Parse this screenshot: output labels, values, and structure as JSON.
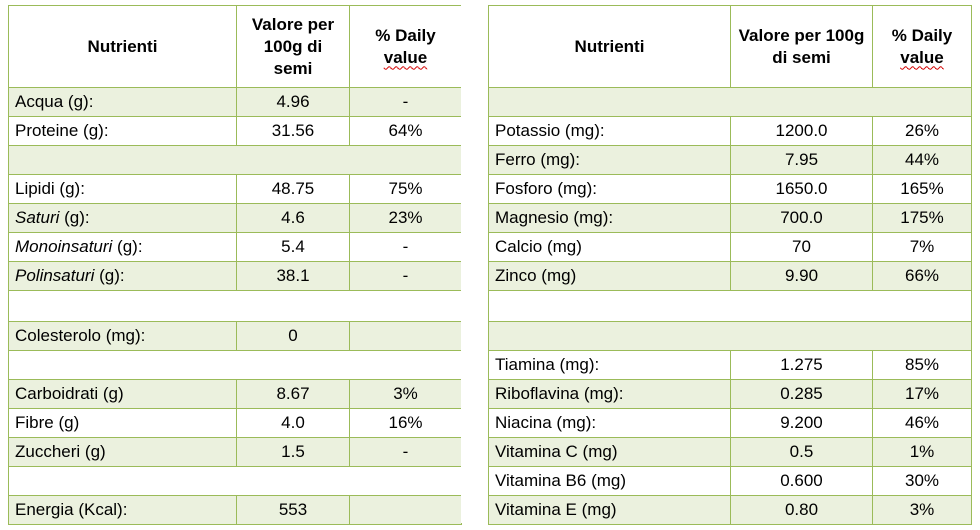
{
  "left_table": {
    "header": {
      "nutrient": "Nutrienti",
      "value": "Valore per 100g di semi",
      "daily_a": "% Daily",
      "daily_b": "value"
    },
    "rows": [
      {
        "name": "Acqua (g):",
        "value": "4.96",
        "daily": "-"
      },
      {
        "name": "Proteine (g):",
        "value": "31.56",
        "daily": "64%"
      },
      {
        "name": "",
        "value": "",
        "daily": ""
      },
      {
        "name": "Lipidi (g):",
        "value": "48.75",
        "daily": "75%"
      },
      {
        "name_italic": "Saturi",
        "name_rest": " (g):",
        "value": "4.6",
        "daily": "23%"
      },
      {
        "name_italic": "Monoinsaturi",
        "name_rest": " (g):",
        "value": "5.4",
        "daily": "-"
      },
      {
        "name_italic": "Polinsaturi",
        "name_rest": " (g):",
        "value": "38.1",
        "daily": "-"
      },
      {
        "name": "",
        "value": "",
        "daily": ""
      },
      {
        "name": "Colesterolo (mg):",
        "value": "0",
        "daily": ""
      },
      {
        "name": "",
        "value": "",
        "daily": ""
      },
      {
        "name": "Carboidrati (g)",
        "value": "8.67",
        "daily": "3%"
      },
      {
        "name": "Fibre (g)",
        "value": "4.0",
        "daily": "16%"
      },
      {
        "name": "Zuccheri (g)",
        "value": "1.5",
        "daily": "-"
      },
      {
        "name": "",
        "value": "",
        "daily": ""
      },
      {
        "name": "Energia (Kcal):",
        "value": "553",
        "daily": ""
      }
    ]
  },
  "right_table": {
    "header": {
      "nutrient": "Nutrienti",
      "value": "Valore per 100g di semi",
      "daily_a": "% Daily",
      "daily_b": "value"
    },
    "rows": [
      {
        "name": "",
        "value": "",
        "daily": ""
      },
      {
        "name": "Potassio (mg):",
        "value": "1200.0",
        "daily": "26%"
      },
      {
        "name": "Ferro (mg):",
        "value": "7.95",
        "daily": "44%"
      },
      {
        "name": "Fosforo (mg):",
        "value": "1650.0",
        "daily": "165%"
      },
      {
        "name": "Magnesio (mg):",
        "value": "700.0",
        "daily": "175%"
      },
      {
        "name": "Calcio (mg)",
        "value": "70",
        "daily": "7%"
      },
      {
        "name": "Zinco (mg)",
        "value": "9.90",
        "daily": "66%"
      },
      {
        "name": "",
        "value": "",
        "daily": ""
      },
      {
        "name": "",
        "value": "",
        "daily": ""
      },
      {
        "name": "Tiamina (mg):",
        "value": "1.275",
        "daily": "85%"
      },
      {
        "name": "Riboflavina (mg):",
        "value": "0.285",
        "daily": "17%"
      },
      {
        "name": "Niacina (mg):",
        "value": "9.200",
        "daily": "46%"
      },
      {
        "name": "Vitamina C (mg)",
        "value": "0.5",
        "daily": "1%"
      },
      {
        "name": "Vitamina B6 (mg)",
        "value": "0.600",
        "daily": "30%"
      },
      {
        "name": "Vitamina E (mg)",
        "value": "0.80",
        "daily": "3%"
      }
    ]
  },
  "colors": {
    "border": "#9bbb59",
    "row_shade": "#ebf1de",
    "spellcheck_underline": "#d40000"
  }
}
